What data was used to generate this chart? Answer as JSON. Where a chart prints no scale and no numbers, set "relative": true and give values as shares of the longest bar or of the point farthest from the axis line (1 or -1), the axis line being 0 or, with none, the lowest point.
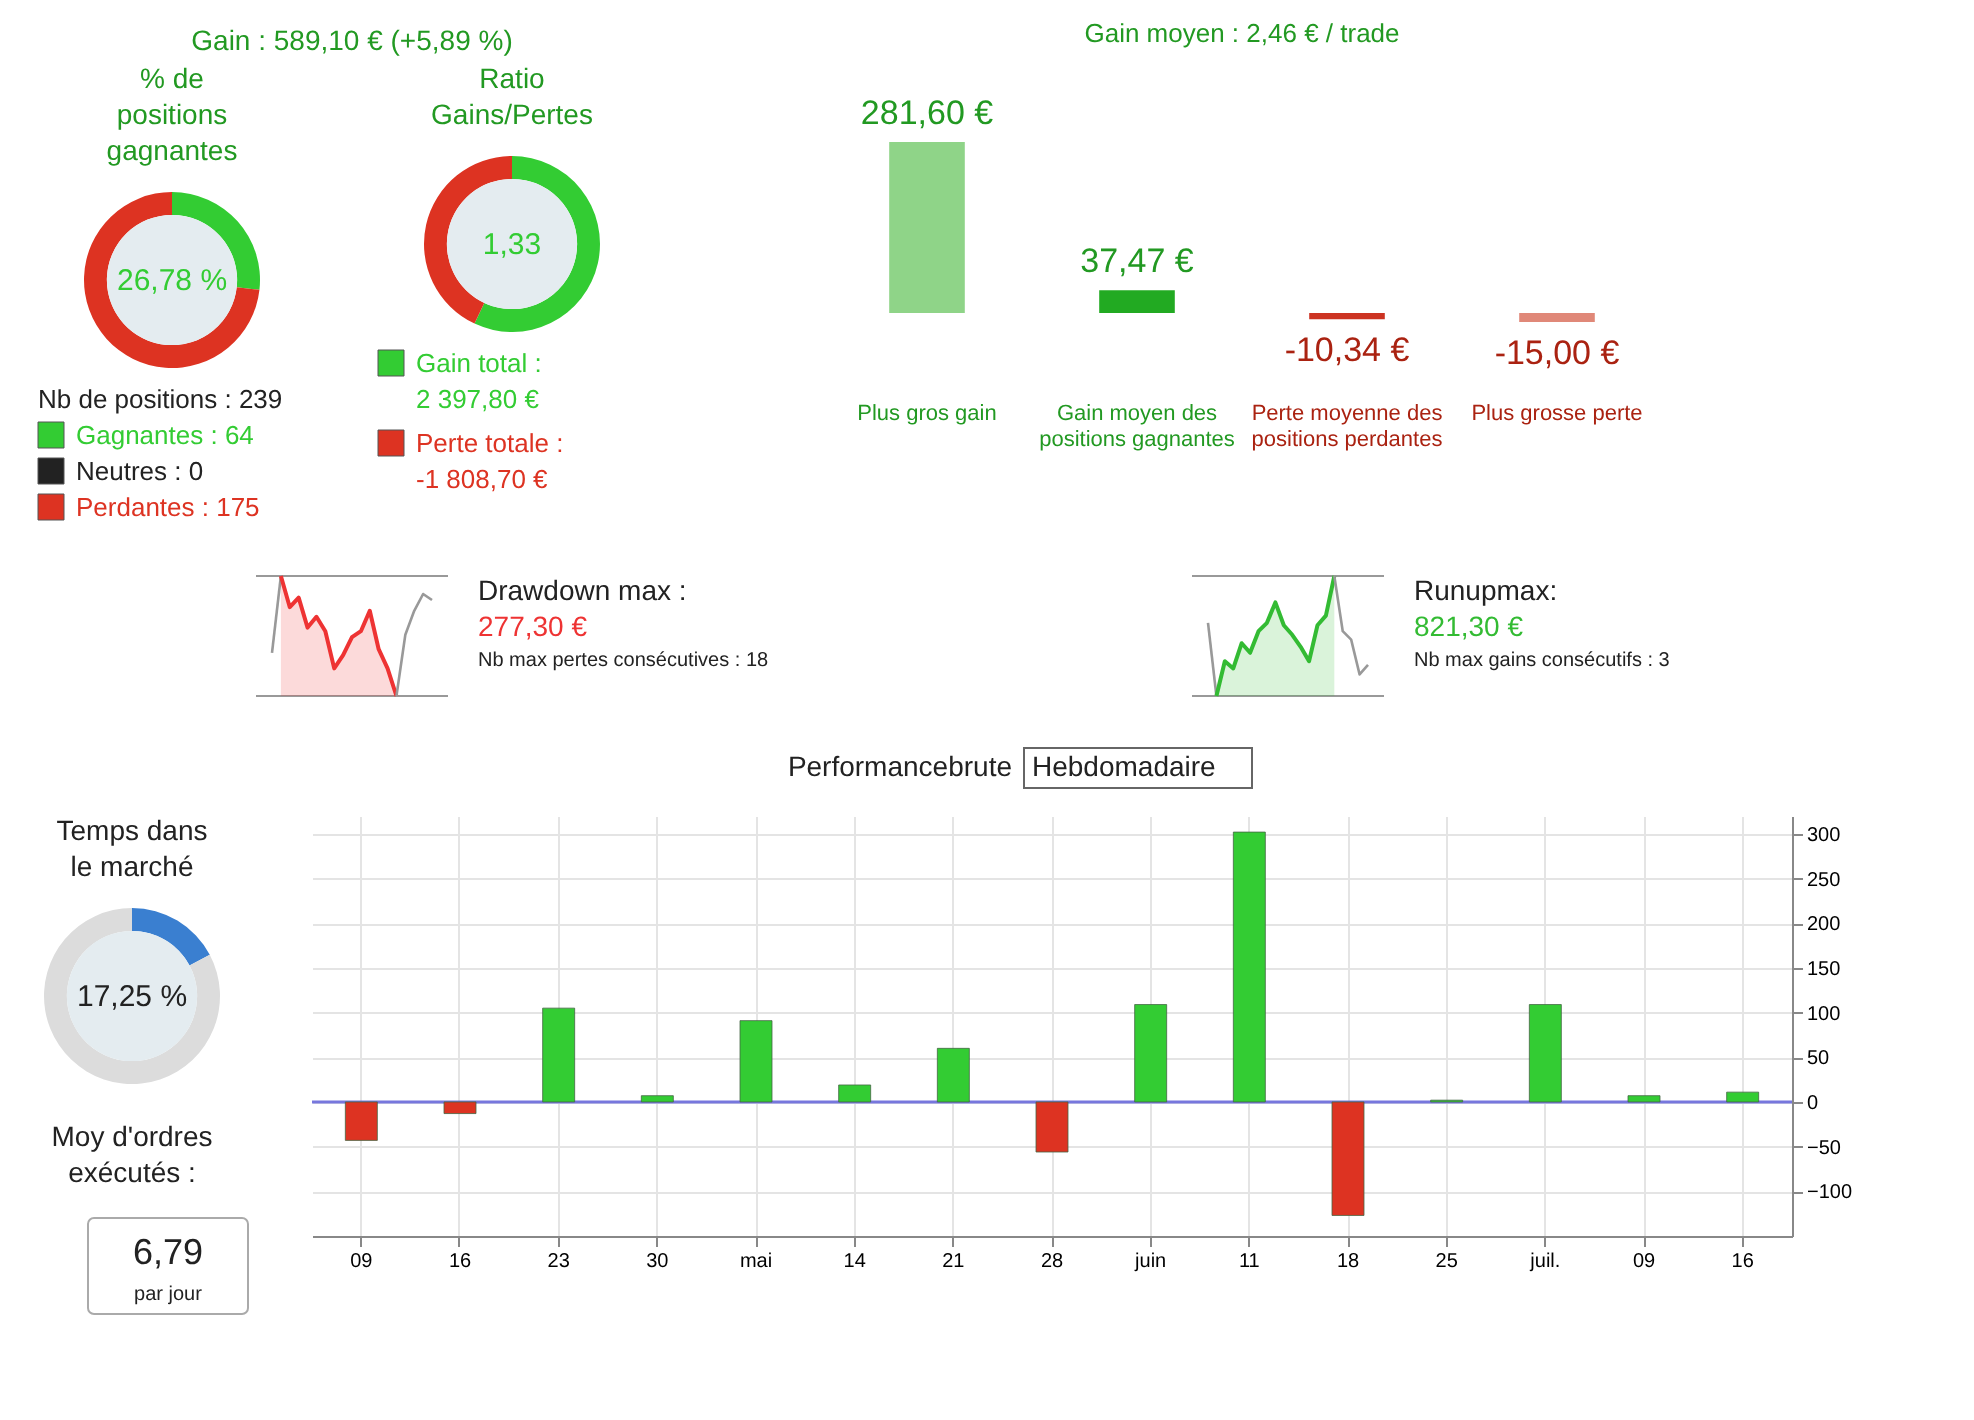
{
  "chart_data": [
    {
      "type": "other",
      "annotations": [
        "Gain : 589,10 € (+5,89 %)"
      ]
    },
    {
      "type": "donut",
      "title": "% de positions gagnantes",
      "legend_title": "Nb de positions : 239",
      "legend": "bottom",
      "categories": [
        "Gagnantes : 64",
        "Neutres : 0",
        "Perdantes : 175"
      ],
      "values": [
        64,
        0,
        175
      ],
      "colors": [
        "#33cc33",
        "#222222",
        "#dd3322"
      ],
      "annotations": [
        "26,78 %"
      ]
    },
    {
      "type": "donut",
      "title": "Ratio Gains/Pertes",
      "legend": "bottom",
      "categories": [
        "Gain total : 2 397,80 €",
        "Perte totale : -1 808,70 €"
      ],
      "values": [
        2397.8,
        1808.7
      ],
      "colors": [
        "#33cc33",
        "#dd3322"
      ],
      "annotations": [
        "1,33"
      ]
    },
    {
      "type": "bar",
      "title": "Gain moyen : 2,46 € / trade",
      "categories": [
        "Plus gros gain",
        "Gain moyen des positions gagnantes",
        "Perte moyenne des positions perdantes",
        "Plus grosse perte"
      ],
      "values": [
        281.6,
        37.47,
        -10.34,
        -15.0
      ],
      "colors": [
        "#8fd488",
        "#22aa22",
        "#cc3322",
        "#e08878"
      ],
      "value_labels": [
        "281,60 €",
        "37,47 €",
        "-10,34 €",
        "-15,00 €"
      ]
    },
    {
      "type": "line",
      "relative": true,
      "categories": [
        null,
        null,
        null,
        null,
        null,
        null,
        null,
        null,
        null,
        null,
        null,
        null,
        null,
        null,
        null,
        null,
        null,
        null,
        null
      ],
      "ref_lines": [
        {
          "axis": "y",
          "value": 1,
          "color": "#999999"
        },
        {
          "axis": "y",
          "value": 0,
          "color": "#999999"
        }
      ],
      "series": [
        {
          "type": "line",
          "color": "#999999",
          "values": [
            0.36,
            1,
            null,
            null,
            null,
            null,
            null,
            null,
            null,
            null,
            null,
            null,
            null,
            null,
            null,
            null,
            null,
            null,
            null
          ]
        },
        {
          "type": "area",
          "color": "#ee3333",
          "values": [
            null,
            1,
            0.74,
            0.82,
            0.57,
            0.66,
            0.54,
            0.23,
            0.34,
            0.49,
            0.54,
            0.71,
            0.39,
            0.23,
            0,
            null,
            null,
            null,
            null
          ]
        },
        {
          "type": "line",
          "color": "#999999",
          "values": [
            null,
            null,
            null,
            null,
            null,
            null,
            null,
            null,
            null,
            null,
            null,
            null,
            null,
            null,
            0,
            0.51,
            0.71,
            0.85,
            0.8
          ]
        }
      ]
    },
    {
      "type": "other",
      "title": "Drawdown max :",
      "annotations": [
        "277,30 €",
        "Nb max pertes consécutives : 18"
      ]
    },
    {
      "type": "line",
      "relative": true,
      "categories": [
        null,
        null,
        null,
        null,
        null,
        null,
        null,
        null,
        null,
        null,
        null,
        null,
        null,
        null,
        null,
        null,
        null,
        null,
        null,
        null
      ],
      "ref_lines": [
        {
          "axis": "y",
          "value": 1,
          "color": "#999999"
        },
        {
          "axis": "y",
          "value": 0,
          "color": "#999999"
        }
      ],
      "series": [
        {
          "type": "line",
          "color": "#999999",
          "values": [
            0.61,
            0,
            null,
            null,
            null,
            null,
            null,
            null,
            null,
            null,
            null,
            null,
            null,
            null,
            null,
            null,
            null,
            null,
            null,
            null
          ]
        },
        {
          "type": "area",
          "color": "#33bb33",
          "values": [
            null,
            0,
            0.29,
            0.23,
            0.44,
            0.36,
            0.54,
            0.61,
            0.78,
            0.59,
            0.51,
            0.41,
            0.29,
            0.59,
            0.67,
            1,
            null,
            null,
            null,
            null
          ]
        },
        {
          "type": "line",
          "color": "#999999",
          "values": [
            null,
            null,
            null,
            null,
            null,
            null,
            null,
            null,
            null,
            null,
            null,
            null,
            null,
            null,
            null,
            1,
            0.54,
            0.47,
            0.18,
            0.26
          ]
        }
      ]
    },
    {
      "type": "other",
      "title": "Runupmax:",
      "annotations": [
        "821,30 €",
        "Nb max gains consécutifs : 3"
      ]
    },
    {
      "type": "donut",
      "title": "Temps dans le marché",
      "categories": [
        null,
        null
      ],
      "values": [
        17.25,
        82.75
      ],
      "colors": [
        "#3a7fd0",
        "#dcdcdc"
      ],
      "annotations": [
        "17,25 %"
      ]
    },
    {
      "type": "other",
      "title": "Moy d'ordres exécutés :",
      "annotations": [
        "6,79",
        "par jour"
      ]
    },
    {
      "type": "bar",
      "title": "Performancebrute",
      "annotations": [
        "Hebdomadaire"
      ],
      "categories": [
        "09",
        "16",
        "23",
        "30",
        "mai",
        "14",
        "21",
        "28",
        "juin",
        "11",
        "18",
        "25",
        "juil.",
        "09",
        "16"
      ],
      "values": [
        -43,
        -13,
        105,
        7,
        91,
        19,
        60,
        -56,
        109,
        302,
        -127,
        2,
        109,
        7,
        11
      ],
      "colors": [
        "#dd3322",
        "#dd3322",
        "#33cc33",
        "#33cc33",
        "#33cc33",
        "#33cc33",
        "#33cc33",
        "#dd3322",
        "#33cc33",
        "#33cc33",
        "#dd3322",
        "#33cc33",
        "#33cc33",
        "#33cc33",
        "#33cc33"
      ],
      "ylim": [
        -150,
        320
      ],
      "yticks": [
        -100,
        -50,
        0,
        50,
        100,
        150,
        200,
        250,
        300
      ],
      "grid": true,
      "ref_lines": [
        {
          "axis": "y",
          "value": 0,
          "color": "#7777dd"
        }
      ]
    }
  ]
}
